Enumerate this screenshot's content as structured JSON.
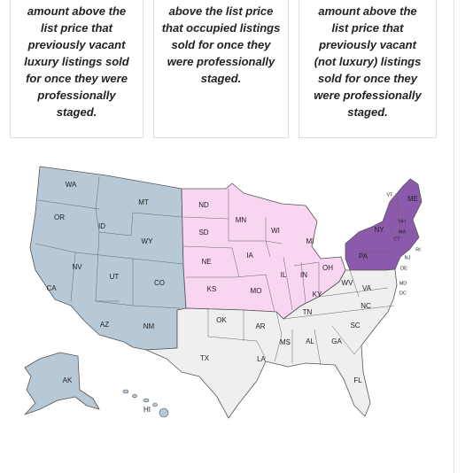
{
  "cards": [
    {
      "lines": [
        "amount above the",
        "list price that",
        "previously vacant",
        "luxury listings sold",
        "for once they were",
        "professionally",
        "staged."
      ]
    },
    {
      "lines": [
        "above the list price",
        "that occupied listings",
        "sold for once they",
        "were professionally",
        "staged."
      ]
    },
    {
      "lines": [
        "amount above the",
        "list price that",
        "previously vacant",
        "(not luxury) listings",
        "sold for once they",
        "were professionally",
        "staged."
      ]
    }
  ],
  "map": {
    "regions": [
      {
        "states": [
          "WA",
          "OR",
          "ID",
          "MT",
          "WY",
          "NV",
          "UT",
          "CO",
          "CA",
          "AZ",
          "NM",
          "AK",
          "HI"
        ]
      },
      {
        "states": [
          "ND",
          "SD",
          "NE",
          "KS",
          "MN",
          "IA",
          "MO",
          "WI",
          "IL",
          "MI",
          "IN",
          "OH"
        ]
      },
      {
        "states": [
          "ME",
          "VT",
          "NH",
          "MA",
          "NY",
          "CT",
          "RI",
          "PA",
          "NJ"
        ]
      },
      {
        "states": [
          "OK",
          "TX",
          "AR",
          "LA",
          "MS",
          "AL",
          "TN",
          "KY",
          "WV",
          "VA",
          "MD",
          "DE",
          "DC",
          "NC",
          "SC",
          "GA",
          "FL"
        ]
      }
    ]
  }
}
